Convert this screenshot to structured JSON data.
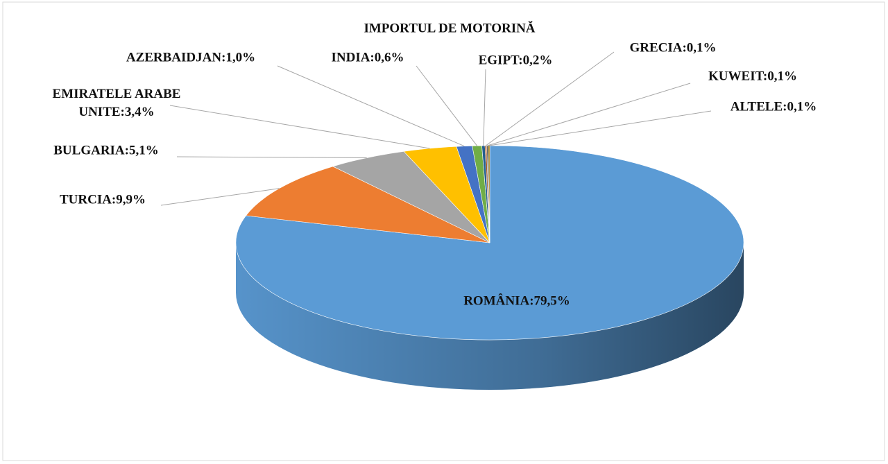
{
  "chart_data": {
    "type": "pie",
    "title": "IMPORTUL DE MOTORINĂ",
    "values": [
      79.5,
      9.9,
      5.1,
      3.4,
      1.0,
      0.6,
      0.2,
      0.1,
      0.1,
      0.1
    ],
    "value_labels": [
      "ROMÂNIA:79,5%",
      "TURCIA:9,9%",
      "BULGARIA:5,1%",
      "EMIRATELE ARABE UNITE:3,4%",
      "AZERBAIDJAN:1,0%",
      "INDIA:0,6%",
      "EGIPT:0,2%",
      "GRECIA:0,1%",
      "KUWEIT:0,1%",
      "ALTELE:0,1%"
    ],
    "colors": [
      "#5b9bd5",
      "#ed7d31",
      "#a5a5a5",
      "#ffc000",
      "#4472c4",
      "#70ad47",
      "#255e91",
      "#9e480e",
      "#636363",
      "#997300"
    ]
  }
}
